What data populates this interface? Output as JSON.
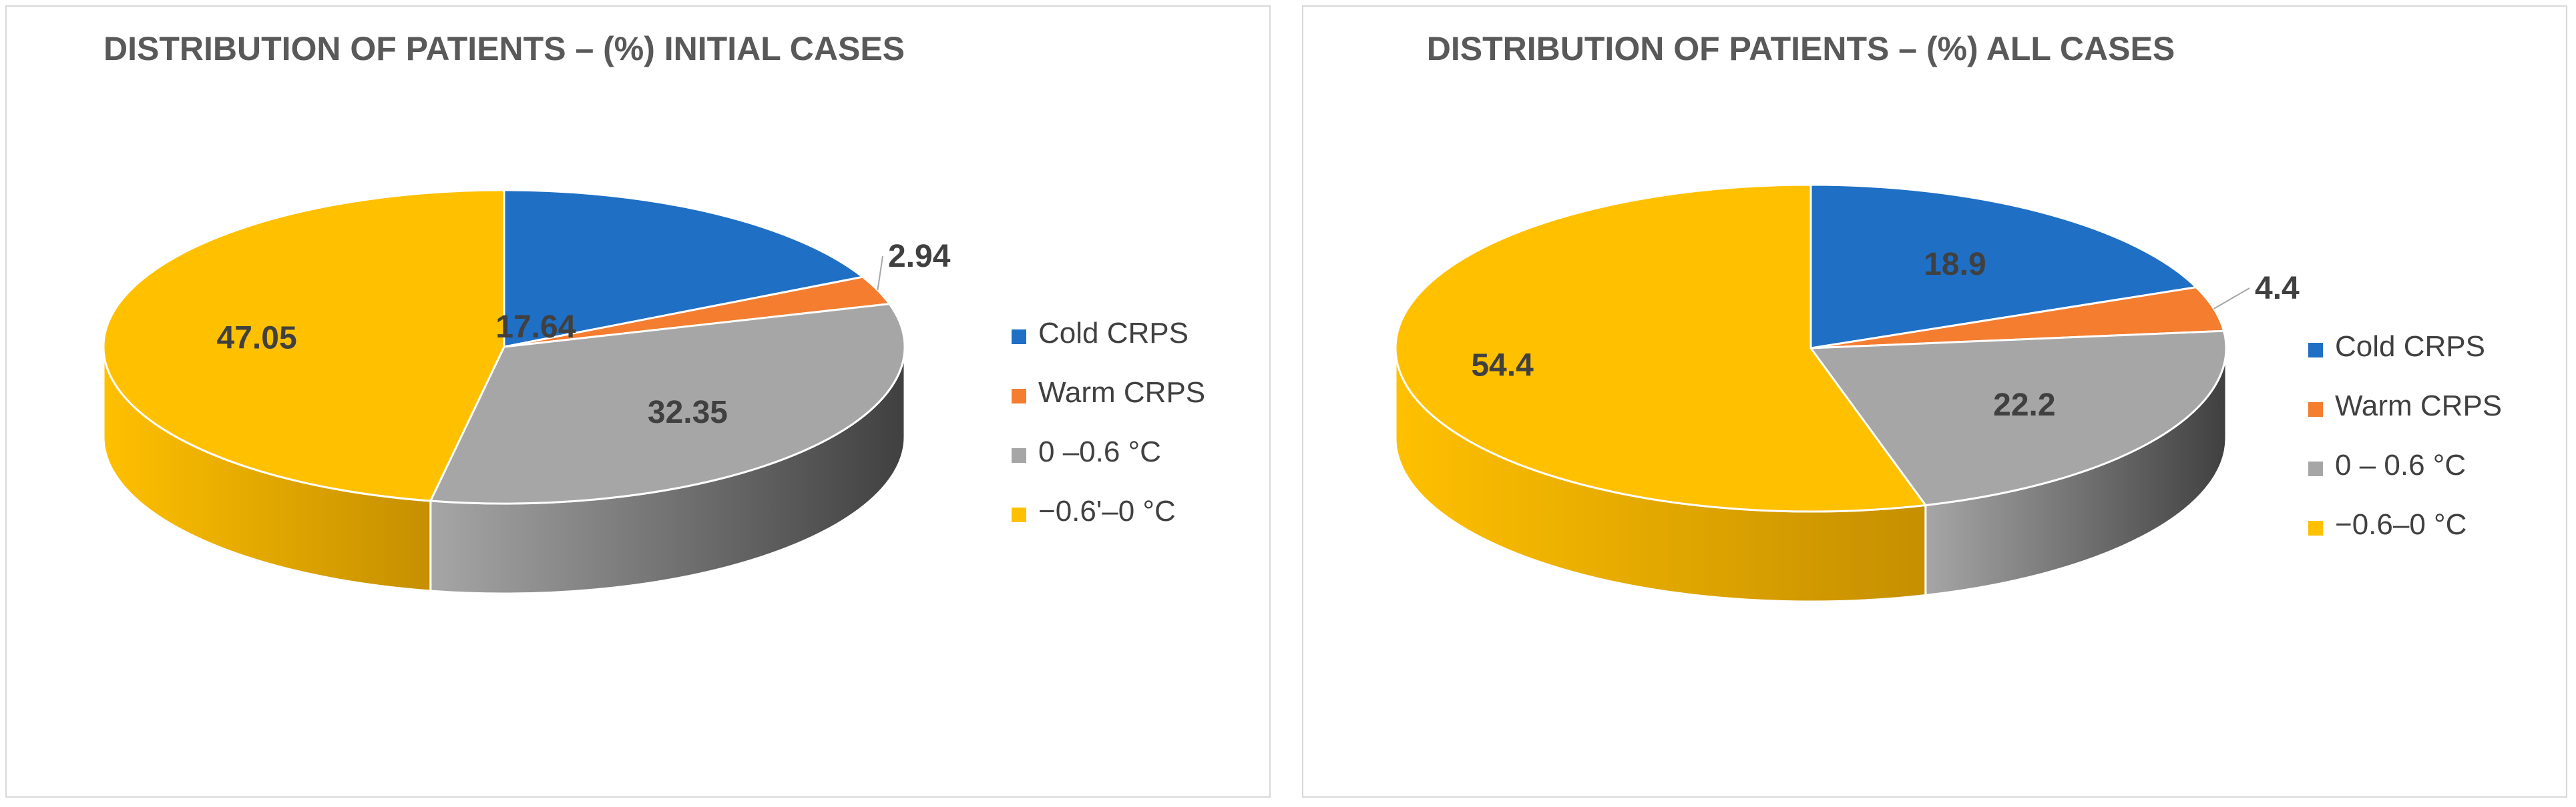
{
  "chart_data": [
    {
      "type": "pie",
      "title": "DISTRIBUTION OF PATIENTS – (%) INITIAL CASES",
      "categories": [
        "Cold CRPS",
        "Warm CRPS",
        "0 –0.6 °C",
        "−0.6'–0 °C"
      ],
      "values": [
        17.64,
        2.94,
        32.35,
        47.05
      ],
      "data_labels": [
        "17.64",
        "2.94",
        "32.35",
        "47.05"
      ],
      "colors": [
        "#1f6fc5",
        "#f47d30",
        "#a6a6a6",
        "#ffc000"
      ],
      "side_colors": [
        "#114a87",
        "#b75b1f",
        "#404040",
        "#c58f00"
      ],
      "legend_position": "right",
      "style": "3d"
    },
    {
      "type": "pie",
      "title": "DISTRIBUTION OF PATIENTS – (%) ALL CASES",
      "categories": [
        "Cold CRPS",
        "Warm CRPS",
        "0 – 0.6 °C",
        "−0.6–0 °C"
      ],
      "values": [
        18.9,
        4.4,
        22.2,
        54.4
      ],
      "data_labels": [
        "18.9",
        "4.4",
        "22.2",
        "54.4"
      ],
      "colors": [
        "#1f6fc5",
        "#f47d30",
        "#a6a6a6",
        "#ffc000"
      ],
      "side_colors": [
        "#114a87",
        "#b75b1f",
        "#404040",
        "#c58f00"
      ],
      "legend_position": "right",
      "style": "3d"
    }
  ]
}
